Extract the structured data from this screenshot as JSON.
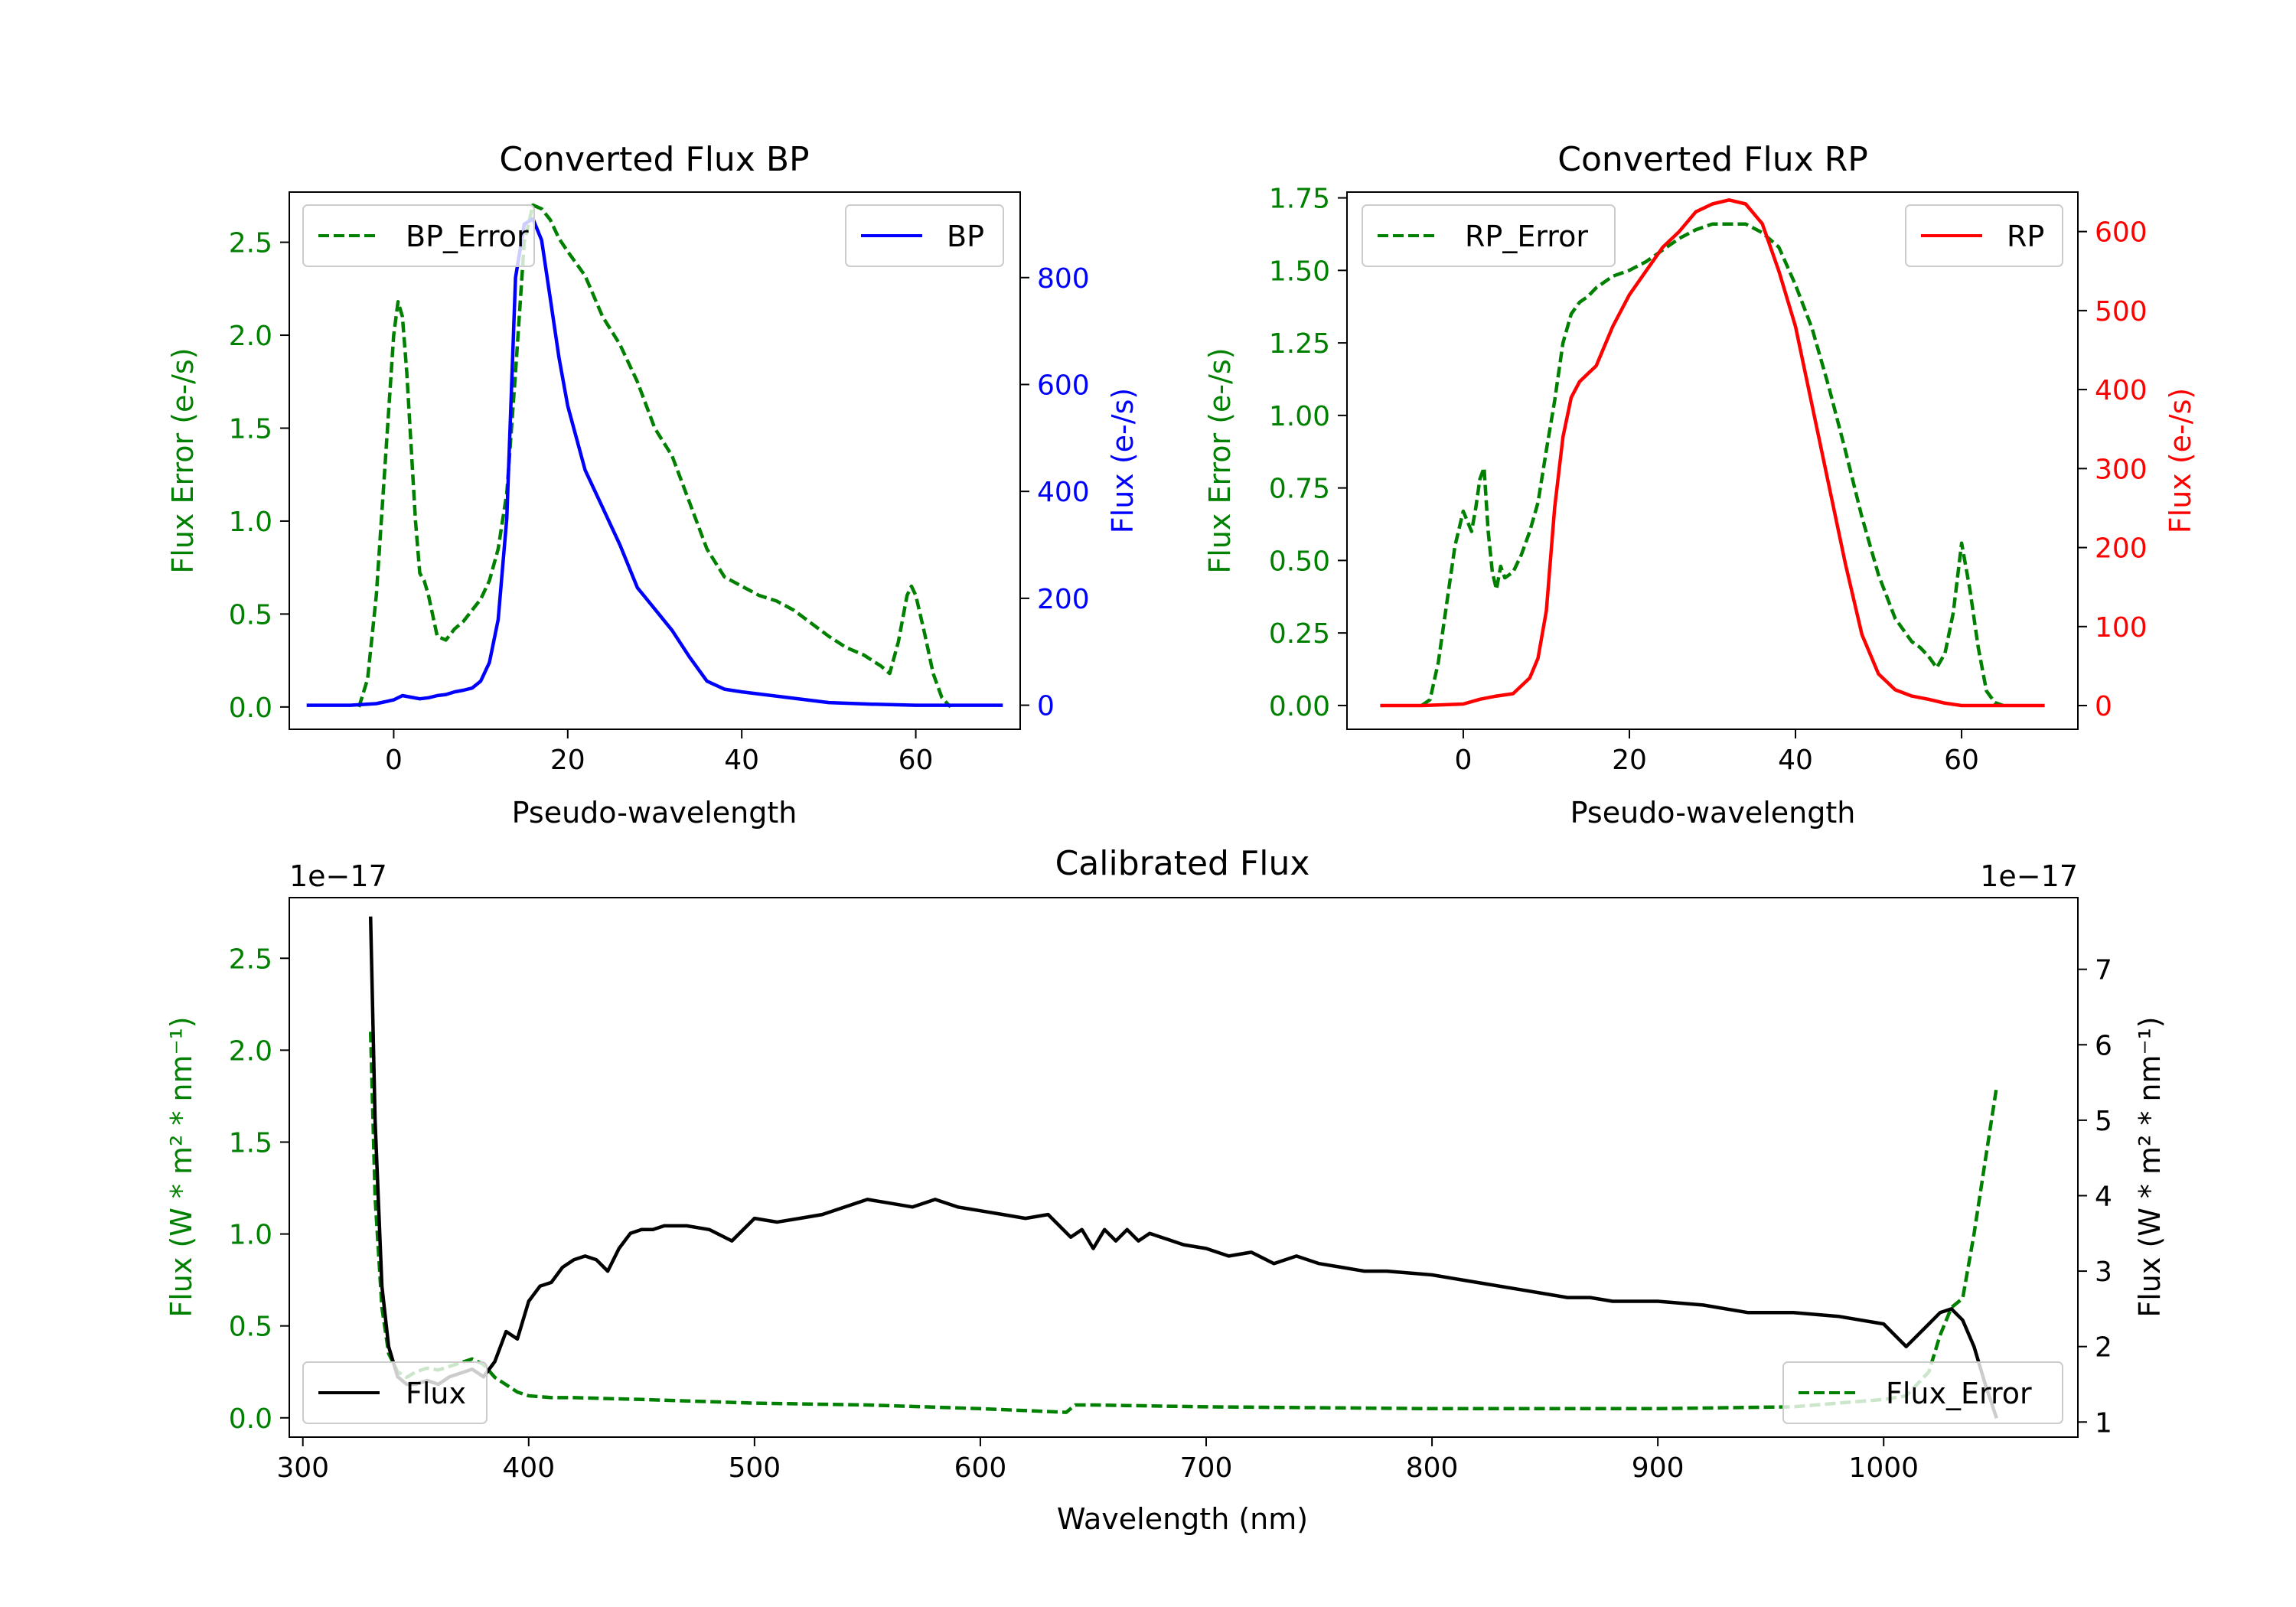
{
  "figure": {
    "colors": {
      "bp": "#0000ff",
      "rp": "#ff0000",
      "error": "#008000",
      "flux": "#000000",
      "axis": "#000000"
    },
    "panels": [
      "bp",
      "rp",
      "calibrated"
    ]
  },
  "chart_data": [
    {
      "id": "bp",
      "type": "line",
      "title": "Converted Flux BP",
      "xlabel": "Pseudo-wavelength",
      "ylabel_left": "Flux Error (e-/s)",
      "ylabel_right": "Flux (e-/s)",
      "xlim": [
        -12,
        72
      ],
      "ylim_left": [
        -0.12,
        2.77
      ],
      "ylim_right": [
        -45,
        960
      ],
      "xticks": [
        0,
        20,
        40,
        60
      ],
      "yticks_left": [
        0.0,
        0.5,
        1.0,
        1.5,
        2.0,
        2.5
      ],
      "yticks_left_labels": [
        "0.0",
        "0.5",
        "1.0",
        "1.5",
        "2.0",
        "2.5"
      ],
      "yticks_right": [
        0,
        200,
        400,
        600,
        800
      ],
      "yticks_right_labels": [
        "0",
        "200",
        "400",
        "600",
        "800"
      ],
      "legend_left": {
        "label": "BP_Error",
        "position": "upper left"
      },
      "legend_right": {
        "label": "BP",
        "position": "upper right"
      },
      "series": [
        {
          "name": "BP_Error",
          "axis": "left",
          "color": "#008000",
          "dashed": true,
          "x": [
            -4,
            -3,
            -2,
            -1,
            0,
            0.5,
            1,
            1.5,
            2,
            2.5,
            3,
            3.5,
            4,
            5,
            6,
            7,
            8,
            9,
            10,
            11,
            12,
            13,
            14,
            15,
            16,
            17,
            18,
            19,
            20,
            22,
            24,
            26,
            28,
            30,
            32,
            34,
            36,
            38,
            40,
            42,
            44,
            46,
            48,
            50,
            52,
            54,
            56,
            57,
            58,
            59,
            59.5,
            60,
            61,
            62,
            63,
            64
          ],
          "y": [
            0.0,
            0.15,
            0.6,
            1.3,
            2.0,
            2.18,
            2.1,
            1.8,
            1.4,
            1.0,
            0.72,
            0.68,
            0.6,
            0.38,
            0.36,
            0.42,
            0.46,
            0.52,
            0.58,
            0.68,
            0.85,
            1.15,
            1.8,
            2.5,
            2.7,
            2.68,
            2.62,
            2.52,
            2.45,
            2.32,
            2.1,
            1.95,
            1.75,
            1.5,
            1.35,
            1.1,
            0.85,
            0.7,
            0.65,
            0.6,
            0.57,
            0.52,
            0.45,
            0.38,
            0.32,
            0.28,
            0.22,
            0.18,
            0.35,
            0.6,
            0.65,
            0.6,
            0.4,
            0.18,
            0.05,
            0.0
          ]
        },
        {
          "name": "BP",
          "axis": "right",
          "color": "#0000ff",
          "dashed": false,
          "x": [
            -10,
            -5,
            -2,
            0,
            1,
            2,
            3,
            4,
            5,
            6,
            7,
            8,
            9,
            10,
            11,
            12,
            13,
            14,
            15,
            16,
            17,
            18,
            19,
            20,
            22,
            24,
            26,
            28,
            30,
            32,
            34,
            36,
            38,
            40,
            45,
            50,
            55,
            60,
            65,
            70
          ],
          "y": [
            0,
            0,
            3,
            10,
            18,
            15,
            12,
            14,
            18,
            20,
            25,
            28,
            32,
            45,
            80,
            160,
            350,
            800,
            900,
            910,
            870,
            760,
            650,
            560,
            440,
            370,
            300,
            220,
            180,
            140,
            90,
            45,
            30,
            25,
            15,
            5,
            2,
            0,
            0,
            0
          ]
        }
      ]
    },
    {
      "id": "rp",
      "type": "line",
      "title": "Converted Flux RP",
      "xlabel": "Pseudo-wavelength",
      "ylabel_left": "Flux Error (e-/s)",
      "ylabel_right": "Flux (e-/s)",
      "xlim": [
        -14,
        74
      ],
      "ylim_left": [
        -0.082,
        1.77
      ],
      "ylim_right": [
        -30,
        650
      ],
      "xticks": [
        0,
        20,
        40,
        60
      ],
      "yticks_left": [
        0.0,
        0.25,
        0.5,
        0.75,
        1.0,
        1.25,
        1.5,
        1.75
      ],
      "yticks_left_labels": [
        "0.00",
        "0.25",
        "0.50",
        "0.75",
        "1.00",
        "1.25",
        "1.50",
        "1.75"
      ],
      "yticks_right": [
        0,
        100,
        200,
        300,
        400,
        500,
        600
      ],
      "yticks_right_labels": [
        "0",
        "100",
        "200",
        "300",
        "400",
        "500",
        "600"
      ],
      "legend_left": {
        "label": "RP_Error",
        "position": "upper left"
      },
      "legend_right": {
        "label": "RP",
        "position": "upper right"
      },
      "series": [
        {
          "name": "RP_Error",
          "axis": "left",
          "color": "#008000",
          "dashed": true,
          "x": [
            -5,
            -4,
            -3,
            -2,
            -1,
            0,
            1,
            1.5,
            2,
            2.5,
            3,
            3.5,
            4,
            4.5,
            5,
            6,
            7,
            8,
            9,
            10,
            11,
            12,
            13,
            14,
            15,
            16,
            18,
            20,
            22,
            24,
            26,
            28,
            30,
            32,
            34,
            36,
            38,
            40,
            42,
            44,
            46,
            48,
            50,
            52,
            54,
            55,
            56,
            57,
            58,
            59,
            60,
            61,
            62,
            63,
            64,
            65
          ],
          "y": [
            0.0,
            0.02,
            0.15,
            0.35,
            0.55,
            0.67,
            0.6,
            0.68,
            0.78,
            0.82,
            0.6,
            0.46,
            0.4,
            0.48,
            0.44,
            0.46,
            0.52,
            0.6,
            0.7,
            0.88,
            1.05,
            1.25,
            1.35,
            1.39,
            1.41,
            1.44,
            1.48,
            1.5,
            1.53,
            1.57,
            1.61,
            1.64,
            1.66,
            1.66,
            1.66,
            1.63,
            1.58,
            1.45,
            1.3,
            1.1,
            0.88,
            0.65,
            0.45,
            0.3,
            0.22,
            0.2,
            0.17,
            0.13,
            0.18,
            0.32,
            0.56,
            0.4,
            0.2,
            0.05,
            0.01,
            0.0
          ]
        },
        {
          "name": "RP",
          "axis": "right",
          "color": "#ff0000",
          "dashed": false,
          "x": [
            -10,
            -5,
            0,
            2,
            4,
            6,
            8,
            9,
            10,
            11,
            12,
            13,
            14,
            15,
            16,
            18,
            20,
            22,
            24,
            26,
            28,
            30,
            32,
            34,
            36,
            38,
            40,
            42,
            44,
            46,
            48,
            50,
            52,
            54,
            56,
            58,
            60,
            65,
            70
          ],
          "y": [
            0,
            0,
            2,
            8,
            12,
            15,
            35,
            60,
            120,
            250,
            340,
            390,
            410,
            420,
            430,
            480,
            520,
            550,
            580,
            600,
            625,
            635,
            640,
            635,
            610,
            550,
            480,
            380,
            280,
            180,
            90,
            40,
            20,
            12,
            8,
            3,
            0,
            0,
            0
          ]
        }
      ]
    },
    {
      "id": "calibrated",
      "type": "line",
      "title": "Calibrated Flux",
      "xlabel": "Wavelength (nm)",
      "ylabel_left": "Flux (W * m² * nm⁻¹)",
      "ylabel_right": "Flux (W * m² * nm⁻¹)",
      "offset_left": "1e−17",
      "offset_right": "1e−17",
      "xlim": [
        294,
        1086
      ],
      "ylim_left": [
        -0.105,
        2.83
      ],
      "ylim_right": [
        0.8,
        7.95
      ],
      "xticks": [
        300,
        400,
        500,
        600,
        700,
        800,
        900,
        1000
      ],
      "yticks_left": [
        0.0,
        0.5,
        1.0,
        1.5,
        2.0,
        2.5
      ],
      "yticks_left_labels": [
        "0.0",
        "0.5",
        "1.0",
        "1.5",
        "2.0",
        "2.5"
      ],
      "yticks_right": [
        1,
        2,
        3,
        4,
        5,
        6,
        7
      ],
      "yticks_right_labels": [
        "1",
        "2",
        "3",
        "4",
        "5",
        "6",
        "7"
      ],
      "legend_left": {
        "label": "Flux",
        "position": "lower left"
      },
      "legend_right": {
        "label": "Flux_Error",
        "position": "lower right"
      },
      "series": [
        {
          "name": "Flux_Error",
          "axis": "left",
          "color": "#008000",
          "dashed": true,
          "x": [
            330,
            332,
            335,
            338,
            342,
            346,
            350,
            355,
            360,
            365,
            370,
            375,
            380,
            385,
            390,
            395,
            400,
            410,
            420,
            450,
            500,
            550,
            600,
            638,
            640,
            642,
            650,
            700,
            800,
            900,
            960,
            1000,
            1010,
            1020,
            1025,
            1030,
            1035,
            1040,
            1045,
            1050
          ],
          "y": [
            2.1,
            1.2,
            0.6,
            0.35,
            0.25,
            0.22,
            0.25,
            0.27,
            0.26,
            0.28,
            0.3,
            0.32,
            0.29,
            0.22,
            0.18,
            0.14,
            0.12,
            0.11,
            0.11,
            0.1,
            0.08,
            0.07,
            0.05,
            0.03,
            0.05,
            0.07,
            0.07,
            0.06,
            0.05,
            0.05,
            0.06,
            0.1,
            0.12,
            0.25,
            0.45,
            0.6,
            0.65,
            1.0,
            1.4,
            1.8
          ]
        },
        {
          "name": "Flux",
          "axis": "right",
          "color": "#000000",
          "dashed": false,
          "x": [
            330,
            332,
            335,
            338,
            342,
            346,
            350,
            355,
            360,
            365,
            370,
            375,
            380,
            385,
            390,
            395,
            400,
            405,
            410,
            415,
            420,
            425,
            430,
            435,
            440,
            445,
            450,
            455,
            460,
            470,
            480,
            490,
            500,
            510,
            520,
            530,
            540,
            550,
            560,
            570,
            580,
            590,
            600,
            610,
            620,
            630,
            640,
            645,
            650,
            655,
            660,
            665,
            670,
            675,
            680,
            685,
            690,
            700,
            710,
            720,
            730,
            740,
            750,
            760,
            770,
            780,
            800,
            820,
            840,
            860,
            870,
            880,
            900,
            920,
            940,
            960,
            980,
            1000,
            1010,
            1020,
            1025,
            1030,
            1035,
            1040,
            1045,
            1050
          ],
          "y": [
            7.7,
            5.0,
            2.8,
            2.0,
            1.6,
            1.5,
            1.5,
            1.55,
            1.5,
            1.6,
            1.65,
            1.7,
            1.6,
            1.8,
            2.2,
            2.1,
            2.6,
            2.8,
            2.85,
            3.05,
            3.15,
            3.2,
            3.15,
            3.0,
            3.3,
            3.5,
            3.55,
            3.55,
            3.6,
            3.6,
            3.55,
            3.4,
            3.7,
            3.65,
            3.7,
            3.75,
            3.85,
            3.95,
            3.9,
            3.85,
            3.95,
            3.85,
            3.8,
            3.75,
            3.7,
            3.75,
            3.45,
            3.55,
            3.3,
            3.55,
            3.4,
            3.55,
            3.4,
            3.5,
            3.45,
            3.4,
            3.35,
            3.3,
            3.2,
            3.25,
            3.1,
            3.2,
            3.1,
            3.05,
            3.0,
            3.0,
            2.95,
            2.85,
            2.75,
            2.65,
            2.65,
            2.6,
            2.6,
            2.55,
            2.45,
            2.45,
            2.4,
            2.3,
            2.0,
            2.3,
            2.45,
            2.5,
            2.35,
            2.0,
            1.5,
            1.05
          ]
        }
      ]
    }
  ]
}
